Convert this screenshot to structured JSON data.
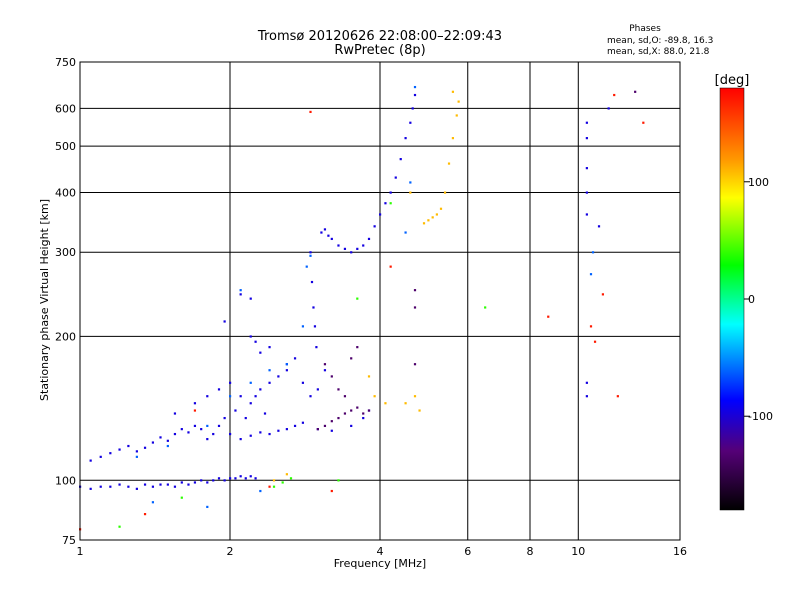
{
  "chart_data": {
    "type": "scatter",
    "title": "Tromsø 20120626 22:08:00–22:09:43",
    "subtitle": "RwPretec (8p)",
    "stats_block": {
      "heading": "Phases",
      "line1": "mean, sd,O:  -89.8, 16.3",
      "line2": "mean, sd,X:  88.0, 21.8"
    },
    "xlabel": "Frequency [MHz]",
    "ylabel": "Stationary phase Virtual Height [km]",
    "x_scale": "log",
    "y_scale": "log",
    "xlim": [
      1,
      16
    ],
    "ylim": [
      75,
      750
    ],
    "x_ticks": [
      1,
      2,
      4,
      6,
      8,
      10,
      16
    ],
    "x_tick_labels": [
      "1",
      "2",
      "4",
      "6",
      "8",
      "10",
      "16"
    ],
    "x_gridlines": [
      2,
      4,
      6,
      8,
      10
    ],
    "y_ticks": [
      75,
      100,
      200,
      300,
      400,
      500,
      600,
      750
    ],
    "y_tick_labels": [
      "75",
      "100",
      "200",
      "300",
      "400",
      "500",
      "600",
      "750"
    ],
    "y_gridlines": [
      100,
      200,
      300,
      400,
      500,
      600
    ],
    "grid": true,
    "colorbar": {
      "label": "[deg]",
      "range": [
        -180,
        180
      ],
      "ticks": [
        100,
        0,
        -100
      ],
      "tick_labels": [
        "100",
        "0",
        "-100"
      ],
      "colors": [
        "#ff0000",
        "#ffff00",
        "#00ff00",
        "#00ffff",
        "#0000ff",
        "#550077",
        "#000000"
      ]
    },
    "series": [
      {
        "phase_deg": -95,
        "points": [
          [
            1.0,
            97
          ],
          [
            1.05,
            96
          ],
          [
            1.1,
            97
          ],
          [
            1.15,
            97
          ],
          [
            1.2,
            98
          ],
          [
            1.25,
            97
          ],
          [
            1.3,
            96
          ],
          [
            1.35,
            98
          ],
          [
            1.4,
            97
          ],
          [
            1.45,
            98
          ],
          [
            1.5,
            98
          ],
          [
            1.55,
            97
          ],
          [
            1.6,
            99
          ],
          [
            1.65,
            98
          ],
          [
            1.7,
            99
          ],
          [
            1.75,
            100
          ],
          [
            1.8,
            99
          ],
          [
            1.85,
            100
          ],
          [
            1.9,
            101
          ],
          [
            1.95,
            100
          ],
          [
            2.0,
            101
          ],
          [
            2.05,
            101
          ],
          [
            2.1,
            102
          ],
          [
            2.15,
            101
          ],
          [
            2.2,
            102
          ],
          [
            2.25,
            101
          ],
          [
            1.05,
            110
          ],
          [
            1.1,
            112
          ],
          [
            1.15,
            114
          ],
          [
            1.2,
            116
          ],
          [
            1.25,
            118
          ],
          [
            1.3,
            115
          ],
          [
            1.35,
            117
          ],
          [
            1.4,
            120
          ],
          [
            1.45,
            123
          ],
          [
            1.5,
            121
          ],
          [
            1.55,
            125
          ],
          [
            1.6,
            128
          ],
          [
            1.65,
            126
          ],
          [
            1.7,
            130
          ],
          [
            1.75,
            128
          ],
          [
            1.8,
            122
          ],
          [
            1.85,
            125
          ],
          [
            1.9,
            130
          ],
          [
            1.95,
            135
          ],
          [
            2.0,
            125
          ],
          [
            2.1,
            122
          ],
          [
            2.2,
            124
          ],
          [
            2.3,
            126
          ],
          [
            2.4,
            125
          ],
          [
            2.5,
            127
          ],
          [
            2.6,
            128
          ],
          [
            2.7,
            130
          ],
          [
            2.8,
            132
          ],
          [
            3.0,
            128
          ],
          [
            3.2,
            127
          ],
          [
            3.5,
            130
          ],
          [
            3.7,
            135
          ],
          [
            3.8,
            140
          ],
          [
            1.55,
            138
          ],
          [
            1.7,
            145
          ],
          [
            1.8,
            150
          ],
          [
            1.9,
            155
          ],
          [
            2.0,
            160
          ],
          [
            2.1,
            150
          ],
          [
            2.2,
            145
          ],
          [
            2.3,
            155
          ],
          [
            2.4,
            160
          ],
          [
            2.5,
            165
          ],
          [
            2.6,
            170
          ],
          [
            2.7,
            180
          ],
          [
            2.8,
            160
          ],
          [
            2.9,
            150
          ],
          [
            3.0,
            155
          ],
          [
            3.1,
            170
          ],
          [
            2.05,
            140
          ],
          [
            2.15,
            135
          ],
          [
            2.25,
            150
          ],
          [
            2.35,
            138
          ],
          [
            2.2,
            200
          ],
          [
            2.25,
            195
          ],
          [
            2.3,
            185
          ],
          [
            2.4,
            190
          ],
          [
            2.6,
            175
          ],
          [
            2.1,
            245
          ],
          [
            2.2,
            240
          ],
          [
            1.95,
            215
          ],
          [
            2.9,
            300
          ],
          [
            2.92,
            260
          ],
          [
            2.94,
            230
          ],
          [
            2.96,
            210
          ],
          [
            2.98,
            190
          ],
          [
            3.05,
            330
          ],
          [
            3.1,
            335
          ],
          [
            3.15,
            325
          ],
          [
            3.2,
            320
          ],
          [
            3.3,
            310
          ],
          [
            3.4,
            305
          ],
          [
            3.5,
            300
          ],
          [
            3.6,
            305
          ],
          [
            3.7,
            310
          ],
          [
            3.8,
            320
          ],
          [
            3.9,
            340
          ],
          [
            4.0,
            360
          ],
          [
            4.1,
            380
          ],
          [
            4.2,
            400
          ],
          [
            4.3,
            430
          ],
          [
            4.4,
            470
          ],
          [
            4.5,
            520
          ],
          [
            4.6,
            560
          ],
          [
            4.65,
            600
          ],
          [
            4.7,
            640
          ],
          [
            10.4,
            560
          ],
          [
            10.4,
            520
          ],
          [
            10.4,
            450
          ],
          [
            10.4,
            400
          ],
          [
            10.4,
            360
          ],
          [
            10.4,
            160
          ],
          [
            10.4,
            150
          ],
          [
            11.5,
            600
          ],
          [
            11.0,
            340
          ]
        ]
      },
      {
        "phase_deg": -135,
        "points": [
          [
            3.0,
            128
          ],
          [
            3.1,
            130
          ],
          [
            3.2,
            133
          ],
          [
            3.3,
            135
          ],
          [
            3.4,
            138
          ],
          [
            3.5,
            140
          ],
          [
            3.6,
            142
          ],
          [
            3.7,
            138
          ],
          [
            3.8,
            140
          ],
          [
            3.1,
            175
          ],
          [
            3.2,
            165
          ],
          [
            3.3,
            155
          ],
          [
            3.4,
            150
          ],
          [
            3.5,
            180
          ],
          [
            3.6,
            190
          ],
          [
            4.7,
            175
          ],
          [
            4.7,
            250
          ],
          [
            4.7,
            230
          ],
          [
            13.0,
            650
          ]
        ]
      },
      {
        "phase_deg": -60,
        "points": [
          [
            1.3,
            112
          ],
          [
            1.5,
            118
          ],
          [
            1.8,
            130
          ],
          [
            2.0,
            150
          ],
          [
            2.2,
            160
          ],
          [
            2.4,
            170
          ],
          [
            2.6,
            175
          ],
          [
            2.8,
            210
          ],
          [
            2.85,
            280
          ],
          [
            2.9,
            295
          ],
          [
            1.4,
            90
          ],
          [
            1.8,
            88
          ],
          [
            2.1,
            250
          ],
          [
            2.3,
            95
          ],
          [
            4.5,
            330
          ],
          [
            4.6,
            420
          ],
          [
            4.7,
            665
          ],
          [
            10.7,
            300
          ],
          [
            10.6,
            270
          ]
        ]
      },
      {
        "phase_deg": 110,
        "points": [
          [
            4.9,
            345
          ],
          [
            5.0,
            350
          ],
          [
            5.1,
            355
          ],
          [
            5.2,
            360
          ],
          [
            5.3,
            370
          ],
          [
            5.4,
            400
          ],
          [
            5.5,
            460
          ],
          [
            5.6,
            520
          ],
          [
            5.7,
            580
          ],
          [
            5.75,
            620
          ],
          [
            4.6,
            400
          ],
          [
            4.5,
            145
          ],
          [
            4.7,
            150
          ],
          [
            4.8,
            140
          ],
          [
            3.9,
            150
          ],
          [
            4.1,
            145
          ],
          [
            3.8,
            165
          ],
          [
            2.45,
            100
          ],
          [
            2.6,
            103
          ],
          [
            5.6,
            650
          ]
        ]
      },
      {
        "phase_deg": 40,
        "points": [
          [
            2.45,
            97
          ],
          [
            2.55,
            99
          ],
          [
            2.65,
            101
          ],
          [
            1.2,
            80
          ],
          [
            1.6,
            92
          ],
          [
            3.6,
            240
          ],
          [
            6.5,
            230
          ],
          [
            3.3,
            100
          ],
          [
            4.2,
            380
          ]
        ]
      },
      {
        "phase_deg": 170,
        "points": [
          [
            1.35,
            85
          ],
          [
            1.7,
            140
          ],
          [
            2.4,
            97
          ],
          [
            3.2,
            95
          ],
          [
            4.2,
            280
          ],
          [
            8.7,
            220
          ],
          [
            10.6,
            210
          ],
          [
            11.2,
            245
          ],
          [
            12.0,
            150
          ],
          [
            11.8,
            640
          ],
          [
            13.5,
            560
          ],
          [
            10.8,
            195
          ],
          [
            2.9,
            590
          ],
          [
            1.0,
            79
          ]
        ]
      }
    ]
  }
}
